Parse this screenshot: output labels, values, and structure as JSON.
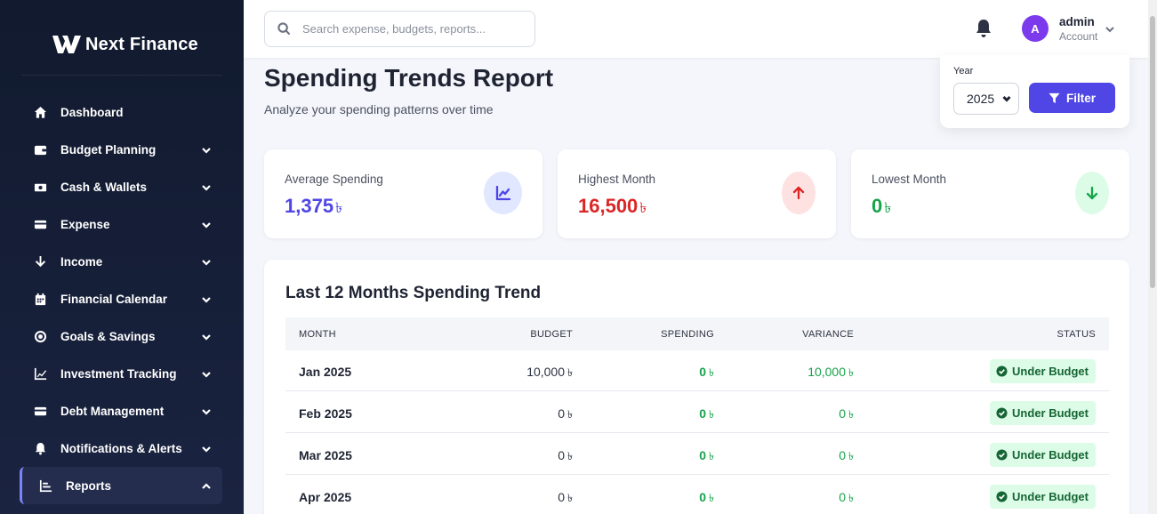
{
  "brand": {
    "name": "Next Finance"
  },
  "sidebar": {
    "items": [
      {
        "label": "Dashboard",
        "icon": "home-icon",
        "chevron": false
      },
      {
        "label": "Budget Planning",
        "icon": "wallet-icon",
        "chevron": true
      },
      {
        "label": "Cash & Wallets",
        "icon": "money-icon",
        "chevron": true
      },
      {
        "label": "Expense",
        "icon": "credit-card-icon",
        "chevron": true
      },
      {
        "label": "Income",
        "icon": "arrow-down-icon",
        "chevron": true
      },
      {
        "label": "Financial Calendar",
        "icon": "calendar-icon",
        "chevron": true
      },
      {
        "label": "Goals & Savings",
        "icon": "target-icon",
        "chevron": true
      },
      {
        "label": "Investment Tracking",
        "icon": "line-chart-icon",
        "chevron": true
      },
      {
        "label": "Debt Management",
        "icon": "card-icon",
        "chevron": true
      },
      {
        "label": "Notifications & Alerts",
        "icon": "bell-icon",
        "chevron": true
      },
      {
        "label": "Reports",
        "icon": "bar-chart-icon",
        "chevron": true,
        "active": true,
        "expanded": true
      }
    ]
  },
  "topbar": {
    "search_placeholder": "Search expense, budgets, reports...",
    "user": {
      "initial": "A",
      "name": "admin",
      "role": "Account"
    }
  },
  "page": {
    "title": "Spending Trends Report",
    "subtitle": "Analyze your spending patterns over time"
  },
  "filter": {
    "year_label": "Year",
    "year_value": "2025",
    "button_label": "Filter"
  },
  "stats": {
    "average": {
      "label": "Average Spending",
      "value": "1,375",
      "currency": "৳",
      "color": "#4f46e5"
    },
    "highest": {
      "label": "Highest Month",
      "value": "16,500",
      "currency": "৳",
      "color": "#dc2626"
    },
    "lowest": {
      "label": "Lowest Month",
      "value": "0",
      "currency": "৳",
      "color": "#16a34a"
    }
  },
  "table": {
    "title": "Last 12 Months Spending Trend",
    "headers": {
      "month": "MONTH",
      "budget": "BUDGET",
      "spending": "SPENDING",
      "variance": "VARIANCE",
      "status": "STATUS"
    },
    "rows": [
      {
        "month": "Jan 2025",
        "budget": "10,000",
        "spending": "0",
        "variance": "10,000",
        "status": "Under Budget"
      },
      {
        "month": "Feb 2025",
        "budget": "0",
        "spending": "0",
        "variance": "0",
        "status": "Under Budget"
      },
      {
        "month": "Mar 2025",
        "budget": "0",
        "spending": "0",
        "variance": "0",
        "status": "Under Budget"
      },
      {
        "month": "Apr 2025",
        "budget": "0",
        "spending": "0",
        "variance": "0",
        "status": "Under Budget"
      }
    ],
    "currency": "৳"
  }
}
